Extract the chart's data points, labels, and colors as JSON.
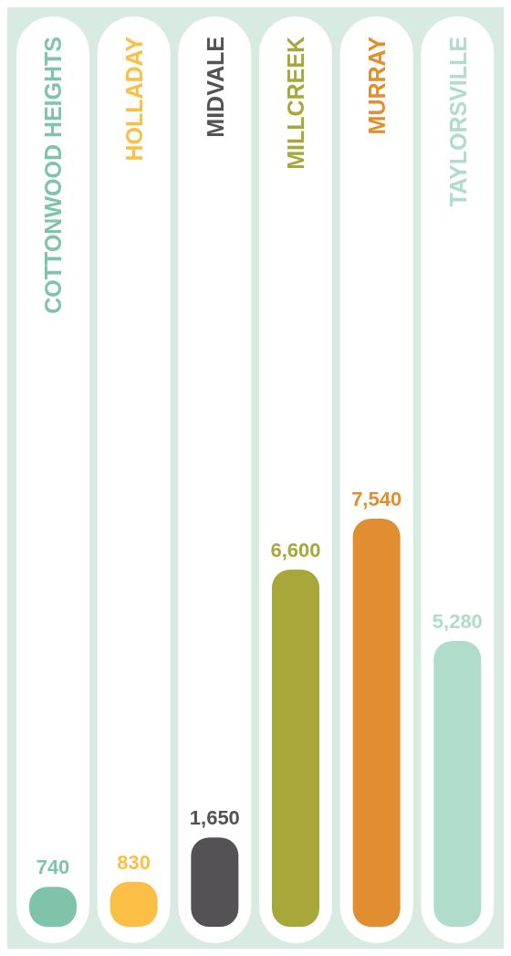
{
  "chart_data": {
    "type": "bar",
    "categories": [
      "COTTONWOOD HEIGHTS",
      "HOLLADAY",
      "MIDVALE",
      "MILLCREEK",
      "MURRAY",
      "TAYLORSVILLE"
    ],
    "values": [
      740,
      830,
      1650,
      6600,
      7540,
      5280
    ],
    "colors": [
      "#7fc4aa",
      "#fbbf45",
      "#545254",
      "#a8a83a",
      "#e08e30",
      "#b0dccb"
    ],
    "value_labels": [
      "740",
      "830",
      "1,650",
      "6,600",
      "7,540",
      "5,280"
    ]
  }
}
